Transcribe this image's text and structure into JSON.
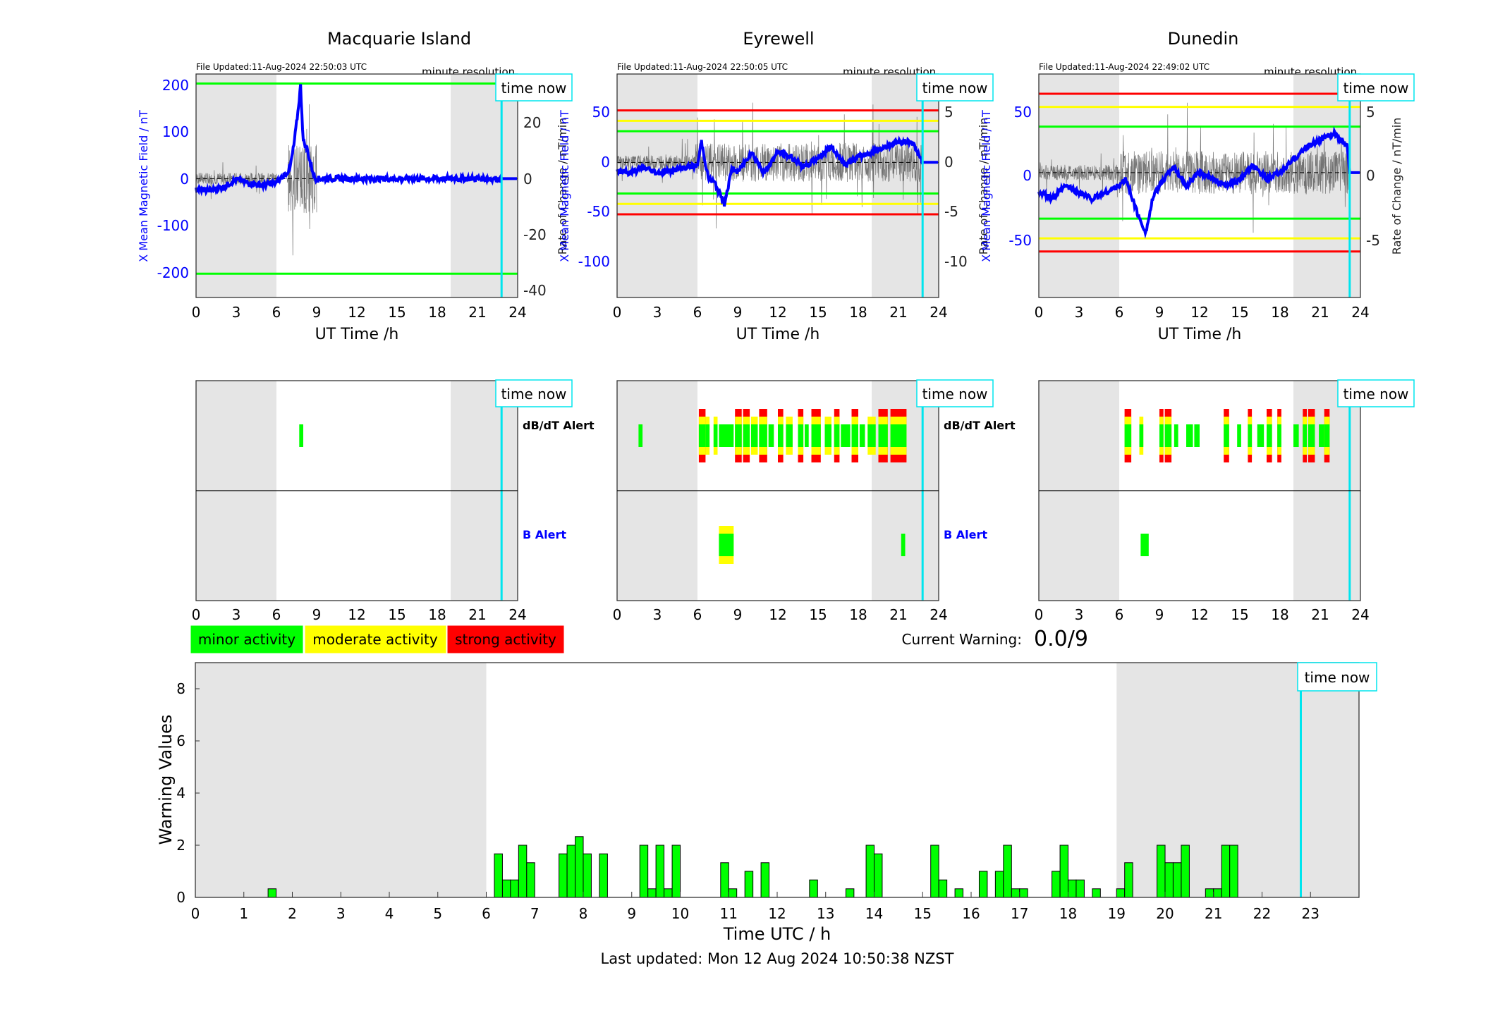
{
  "colors": {
    "minor": "#00ff00",
    "moderate": "#ffff00",
    "strong": "#ff0000",
    "blue": "#0000ff",
    "cyan": "#00e5ee",
    "night": "#e5e5e5"
  },
  "stations": [
    {
      "name": "Macquarie Island",
      "file_updated": "File Updated:11-Aug-2024 22:50:03 UTC",
      "resolution": "minute resolution",
      "time_now_label": "time now",
      "left_ylabel": "X Mean Magnetic Field / nT",
      "right_ylabel": "Rate of Change / nT/min",
      "xlabel": "UT Time /h",
      "xticks": [
        "0",
        "3",
        "6",
        "9",
        "12",
        "15",
        "18",
        "21",
        "24"
      ],
      "left_yticks": [
        "200",
        "100",
        "0",
        "-100",
        "-200"
      ],
      "right_yticks": [
        "20",
        "0",
        "-20",
        "-40"
      ],
      "dbdt_label": "dB/dT Alert",
      "b_label": "B Alert"
    },
    {
      "name": "Eyrewell",
      "file_updated": "File Updated:11-Aug-2024 22:50:05 UTC",
      "resolution": "minute resolution",
      "time_now_label": "time now",
      "left_ylabel": "X Mean Magnetic Field / nT",
      "right_ylabel": "Rate of Change / nT/min",
      "xlabel": "UT Time /h",
      "xticks": [
        "0",
        "3",
        "6",
        "9",
        "12",
        "15",
        "18",
        "21",
        "24"
      ],
      "left_yticks": [
        "50",
        "0",
        "-50",
        "-100"
      ],
      "right_yticks": [
        "5",
        "0",
        "-5",
        "-10"
      ],
      "dbdt_label": "dB/dT Alert",
      "b_label": "B Alert"
    },
    {
      "name": "Dunedin",
      "file_updated": "File Updated:11-Aug-2024 22:49:02 UTC",
      "resolution": "minute resolution",
      "time_now_label": "time now",
      "left_ylabel": "X Mean Magnetic Field / nT",
      "right_ylabel": "Rate of Change / nT/min",
      "xlabel": "UT Time /h",
      "xticks": [
        "0",
        "3",
        "6",
        "9",
        "12",
        "15",
        "18",
        "21",
        "24"
      ],
      "left_yticks": [
        "50",
        "0",
        "-50"
      ],
      "right_yticks": [
        "5",
        "0",
        "-5"
      ],
      "dbdt_label": "dB/dT Alert",
      "b_label": "B Alert"
    }
  ],
  "legend": {
    "minor": "minor activity",
    "moderate": "moderate activity",
    "strong": "strong activity"
  },
  "current_warning_label": "Current Warning:",
  "current_warning_value": "0.0/9",
  "time_now_label": "time now",
  "last_updated": "Last updated: Mon 12 Aug 2024 10:50:38 NZST",
  "chart_data": [
    {
      "type": "line",
      "title": "Macquarie Island",
      "xlabel": "UT Time /h",
      "ylabel": "X Mean Magnetic Field / nT",
      "y2label": "Rate of Change / nT/min",
      "xlim": [
        0,
        24
      ],
      "ylim": [
        -250,
        220
      ],
      "y2lim": [
        -42,
        35
      ],
      "night_shading_h": [
        [
          0,
          6
        ],
        [
          19,
          24
        ]
      ],
      "time_now_h": 22.8,
      "threshold_lines": [
        {
          "value": 200,
          "color": "#00ff00"
        },
        {
          "value": -200,
          "color": "#00ff00"
        }
      ],
      "x_mean_field": {
        "x": [
          0,
          1,
          2,
          3,
          4,
          5,
          6,
          6.5,
          7,
          7.3,
          7.6,
          7.8,
          8,
          8.3,
          8.6,
          8.9,
          9,
          12,
          15,
          18,
          21,
          23,
          24
        ],
        "y": [
          -22,
          -25,
          -18,
          -2,
          -10,
          -14,
          -8,
          5,
          20,
          70,
          140,
          195,
          80,
          60,
          25,
          0,
          0,
          0,
          0,
          0,
          0,
          0,
          0
        ]
      }
    },
    {
      "type": "line",
      "title": "Eyrewell",
      "xlabel": "UT Time /h",
      "ylabel": "X Mean Magnetic Field / nT",
      "y2label": "Rate of Change / nT/min",
      "xlim": [
        0,
        24
      ],
      "ylim": [
        -130,
        85
      ],
      "y2lim": [
        -13,
        8.5
      ],
      "night_shading_h": [
        [
          0,
          6
        ],
        [
          19,
          24
        ]
      ],
      "time_now_h": 22.8,
      "threshold_lines": [
        {
          "value": 50,
          "color": "#ff0000"
        },
        {
          "value": 40,
          "color": "#ffff00"
        },
        {
          "value": 30,
          "color": "#00ff00"
        },
        {
          "value": -30,
          "color": "#00ff00"
        },
        {
          "value": -40,
          "color": "#ffff00"
        },
        {
          "value": -50,
          "color": "#ff0000"
        }
      ],
      "x_mean_field": {
        "x": [
          0,
          1,
          2,
          3,
          4,
          5,
          6,
          6.3,
          6.8,
          7.3,
          8,
          8.6,
          9,
          10,
          11,
          12,
          13,
          14,
          15,
          16,
          17,
          18,
          19,
          20,
          21,
          22,
          22.8,
          24
        ],
        "y": [
          -8,
          -10,
          -5,
          -10,
          -8,
          -5,
          -3,
          20,
          -15,
          -20,
          -40,
          -5,
          -10,
          10,
          -10,
          10,
          5,
          -5,
          5,
          15,
          -2,
          5,
          10,
          15,
          20,
          20,
          0,
          0
        ]
      }
    },
    {
      "type": "line",
      "title": "Dunedin",
      "xlabel": "UT Time /h",
      "ylabel": "X Mean Magnetic Field / nT",
      "y2label": "Rate of Change / nT/min",
      "xlim": [
        0,
        24
      ],
      "ylim": [
        -95,
        75
      ],
      "y2lim": [
        -9.5,
        7.5
      ],
      "night_shading_h": [
        [
          0,
          6
        ],
        [
          19,
          24
        ]
      ],
      "time_now_h": 23.2,
      "threshold_lines": [
        {
          "value": 60,
          "color": "#ff0000"
        },
        {
          "value": 50,
          "color": "#ffff00"
        },
        {
          "value": 35,
          "color": "#00ff00"
        },
        {
          "value": -35,
          "color": "#00ff00"
        },
        {
          "value": -50,
          "color": "#ffff00"
        },
        {
          "value": -60,
          "color": "#ff0000"
        }
      ],
      "x_mean_field": {
        "x": [
          0,
          1,
          2,
          3,
          4,
          5,
          6,
          6.5,
          7,
          7.5,
          8,
          8.5,
          9,
          10,
          11,
          12,
          13,
          14,
          15,
          16,
          17,
          18,
          19,
          20,
          21,
          22,
          23,
          23.2,
          24
        ],
        "y": [
          -15,
          -20,
          -10,
          -15,
          -20,
          -15,
          -10,
          -5,
          -20,
          -35,
          -45,
          -20,
          -10,
          5,
          -10,
          0,
          -5,
          -10,
          -5,
          5,
          -5,
          0,
          10,
          20,
          25,
          30,
          20,
          0,
          0
        ]
      }
    },
    {
      "type": "bar",
      "title": "Warning Values",
      "xlabel": "Time UTC / h",
      "ylabel": "Warning Values",
      "xlim": [
        0,
        24
      ],
      "ylim": [
        0,
        9
      ],
      "xticks": [
        "0",
        "1",
        "2",
        "3",
        "4",
        "5",
        "6",
        "7",
        "8",
        "9",
        "10",
        "11",
        "12",
        "13",
        "14",
        "15",
        "16",
        "17",
        "18",
        "19",
        "20",
        "21",
        "22",
        "23"
      ],
      "yticks": [
        "0",
        "2",
        "4",
        "6",
        "8"
      ],
      "night_shading_h": [
        [
          0,
          6
        ],
        [
          19,
          24
        ]
      ],
      "time_now_h": 22.8,
      "x": [
        1.583,
        6.25,
        6.417,
        6.583,
        6.75,
        6.917,
        7.583,
        7.75,
        7.917,
        8.083,
        8.417,
        9.25,
        9.417,
        9.583,
        9.75,
        9.917,
        10.917,
        11.083,
        11.417,
        11.75,
        12.75,
        13.5,
        13.917,
        14.083,
        15.25,
        15.417,
        15.75,
        16.25,
        16.583,
        16.75,
        16.917,
        17.083,
        17.75,
        17.917,
        18.083,
        18.25,
        18.583,
        19.083,
        19.25,
        19.917,
        20.083,
        20.25,
        20.417,
        20.917,
        21.083,
        21.25,
        21.417
      ],
      "values": [
        0.33,
        1.67,
        0.67,
        0.67,
        2.0,
        1.33,
        1.67,
        2.0,
        2.33,
        1.67,
        1.67,
        2.0,
        0.33,
        2.0,
        0.33,
        2.0,
        1.33,
        0.33,
        1.0,
        1.33,
        0.67,
        0.33,
        2.0,
        1.67,
        2.0,
        0.67,
        0.33,
        1.0,
        1.0,
        2.0,
        0.33,
        0.33,
        1.0,
        2.0,
        0.67,
        0.67,
        0.33,
        0.33,
        1.33,
        2.0,
        1.33,
        1.33,
        2.0,
        0.33,
        0.33,
        2.0,
        2.0
      ]
    }
  ],
  "alert_data": [
    {
      "dbdt": [
        [
          7.7,
          8.0,
          "g"
        ]
      ],
      "b": []
    },
    {
      "dbdt": [
        [
          1.6,
          1.9,
          "g"
        ],
        [
          6.1,
          6.6,
          "r"
        ],
        [
          6.6,
          6.9,
          "y"
        ],
        [
          7.2,
          7.5,
          "y"
        ],
        [
          7.6,
          8.7,
          "g"
        ],
        [
          8.8,
          9.3,
          "r"
        ],
        [
          9.4,
          9.9,
          "r"
        ],
        [
          10.0,
          10.5,
          "y"
        ],
        [
          10.6,
          11.2,
          "r"
        ],
        [
          11.3,
          11.7,
          "g"
        ],
        [
          12.0,
          12.4,
          "r"
        ],
        [
          12.6,
          13.1,
          "y"
        ],
        [
          13.5,
          13.9,
          "r"
        ],
        [
          14.0,
          14.3,
          "g"
        ],
        [
          14.5,
          15.2,
          "r"
        ],
        [
          15.5,
          16.0,
          "y"
        ],
        [
          16.2,
          16.6,
          "r"
        ],
        [
          16.7,
          17.4,
          "g"
        ],
        [
          17.5,
          18.0,
          "r"
        ],
        [
          18.1,
          18.5,
          "g"
        ],
        [
          18.7,
          19.3,
          "y"
        ],
        [
          19.5,
          20.2,
          "r"
        ],
        [
          20.4,
          21.0,
          "r"
        ],
        [
          21.0,
          21.6,
          "r"
        ]
      ],
      "b": [
        [
          7.6,
          8.7,
          "y"
        ],
        [
          21.2,
          21.5,
          "g"
        ]
      ]
    },
    {
      "dbdt": [
        [
          6.4,
          6.9,
          "r"
        ],
        [
          7.5,
          7.8,
          "y"
        ],
        [
          9.0,
          9.3,
          "r"
        ],
        [
          9.4,
          9.9,
          "r"
        ],
        [
          10.1,
          10.4,
          "g"
        ],
        [
          11.0,
          11.5,
          "g"
        ],
        [
          11.6,
          12.0,
          "g"
        ],
        [
          13.8,
          14.2,
          "r"
        ],
        [
          14.8,
          15.1,
          "g"
        ],
        [
          15.6,
          15.9,
          "r"
        ],
        [
          16.3,
          16.8,
          "g"
        ],
        [
          17.0,
          17.4,
          "r"
        ],
        [
          17.8,
          18.1,
          "r"
        ],
        [
          19.0,
          19.4,
          "g"
        ],
        [
          19.7,
          20.0,
          "r"
        ],
        [
          20.1,
          20.6,
          "r"
        ],
        [
          20.9,
          21.3,
          "g"
        ],
        [
          21.3,
          21.7,
          "r"
        ]
      ],
      "b": [
        [
          7.6,
          8.2,
          "g"
        ]
      ]
    }
  ]
}
